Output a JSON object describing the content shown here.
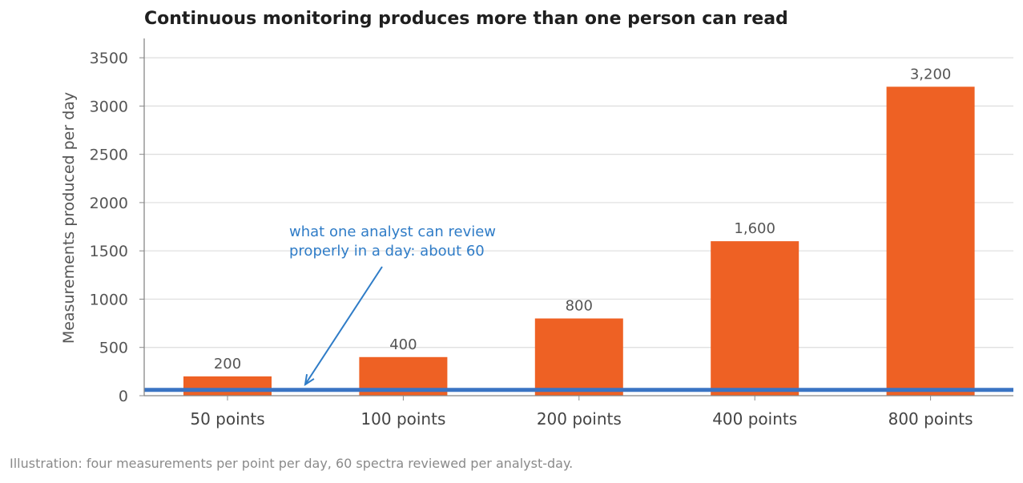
{
  "chart_data": {
    "type": "bar",
    "title": "Continuous monitoring produces more than one person can read",
    "ylabel": "Measurements produced per day",
    "xlabel": "",
    "categories": [
      "50 points",
      "100 points",
      "200 points",
      "400 points",
      "800 points"
    ],
    "values": [
      200,
      400,
      800,
      1600,
      3200
    ],
    "data_labels": [
      "200",
      "400",
      "800",
      "1,600",
      "3,200"
    ],
    "ylim": [
      0,
      3700
    ],
    "yticks": [
      0,
      500,
      1000,
      1500,
      2000,
      2500,
      3000,
      3500
    ],
    "grid": true,
    "reference_line": {
      "value": 60,
      "annotation_lines": [
        "what one analyst can review",
        "properly in a day: about 60"
      ]
    },
    "footnote": "Illustration: four measurements per point per day, 60 spectra reviewed per analyst-day.",
    "colors": {
      "bar": "#ee6124",
      "reference": "#3a74c4",
      "annotation": "#2f7cc7",
      "grid": "#dddddd",
      "axis": "#888888"
    }
  }
}
